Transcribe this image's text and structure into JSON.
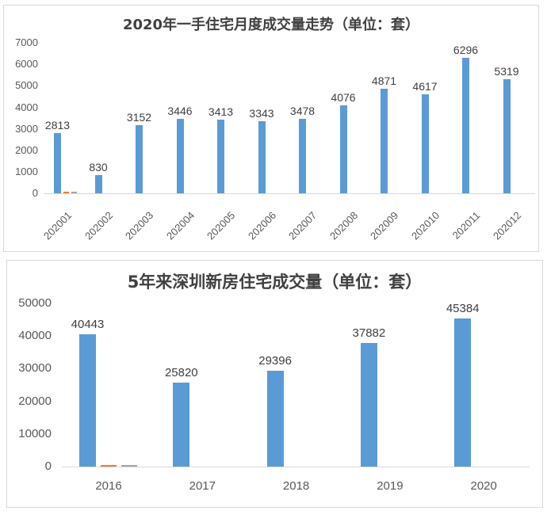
{
  "colors": {
    "primary_bar": "#5b9bd5",
    "secondary_bar": "#ed7d31",
    "tertiary_bar": "#a5a5a5",
    "axis_line": "#d9d9d9",
    "text": "#595959",
    "title": "#404040"
  },
  "chart_data": [
    {
      "type": "bar",
      "title": "2020年一手住宅月度成交量走势（单位：套）",
      "xlabel": "",
      "ylabel": "",
      "categories": [
        "202001",
        "202002",
        "202003",
        "202004",
        "202005",
        "202006",
        "202007",
        "202008",
        "202009",
        "202010",
        "202011",
        "202012"
      ],
      "values": [
        2813,
        830,
        3152,
        3446,
        3413,
        3343,
        3478,
        4076,
        4871,
        4617,
        6296,
        5319
      ],
      "yticks": [
        0,
        1000,
        2000,
        3000,
        4000,
        5000,
        6000,
        7000
      ],
      "ylim": [
        0,
        7000
      ],
      "grid": false,
      "legend": "none",
      "data_labels": true,
      "xtick_rotation": -45,
      "extra_series_first_category_only": [
        "#ed7d31",
        "#a5a5a5"
      ]
    },
    {
      "type": "bar",
      "title": "5年来深圳新房住宅成交量（单位：套）",
      "xlabel": "",
      "ylabel": "",
      "categories": [
        "2016",
        "2017",
        "2018",
        "2019",
        "2020"
      ],
      "values": [
        40443,
        25820,
        29396,
        37882,
        45384
      ],
      "yticks": [
        0,
        10000,
        20000,
        30000,
        40000,
        50000
      ],
      "ylim": [
        0,
        50000
      ],
      "grid": false,
      "legend": "none",
      "data_labels": true,
      "xtick_rotation": 0,
      "extra_series_first_category_only": [
        "#ed7d31",
        "#a5a5a5"
      ]
    }
  ]
}
